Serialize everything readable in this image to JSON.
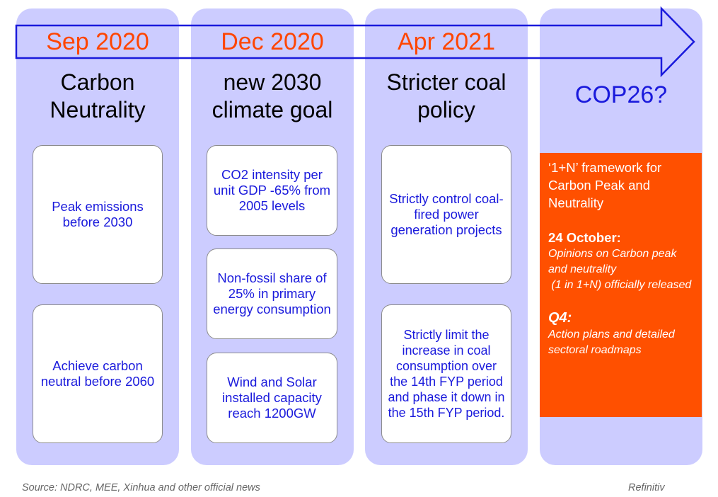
{
  "columns": [
    {
      "date": "Sep 2020",
      "title_lines": [
        "Carbon",
        "Neutrality"
      ],
      "cards": [
        "Peak emissions before 2030",
        "Achieve carbon neutral before 2060"
      ]
    },
    {
      "date": "Dec 2020",
      "title_lines": [
        "new 2030",
        "climate goal"
      ],
      "cards": [
        "CO2 intensity per unit GDP -65% from 2005 levels",
        "Non-fossil share of 25% in primary energy consumption",
        "Wind and Solar installed capacity reach 1200GW"
      ]
    },
    {
      "date": "Apr 2021",
      "title_lines": [
        "Stricter coal",
        "policy"
      ],
      "cards": [
        "Strictly control coal-fired power generation projects",
        "Strictly limit the increase in coal consumption over the 14th FYP period and phase it down in the 15th FYP period."
      ]
    }
  ],
  "cop": {
    "title": "COP26?",
    "framework": "‘1+N’ framework for Carbon Peak and Neutrality",
    "oct_heading": "24 October:",
    "oct_text": "Opinions on Carbon peak and neutrality\n (1 in 1+N) officially released",
    "q4_heading": "Q4:",
    "q4_text": "Action plans and detailed sectoral roadmaps"
  },
  "footer": {
    "source": "Source: NDRC, MEE,  Xinhua and other official news",
    "brand": "Refinitiv"
  },
  "colors": {
    "column_bg": "#ccccff",
    "date": "#ff4500",
    "card_text": "#1a1adc",
    "arrow": "#1a1adc",
    "orange_box": "#ff5000"
  }
}
